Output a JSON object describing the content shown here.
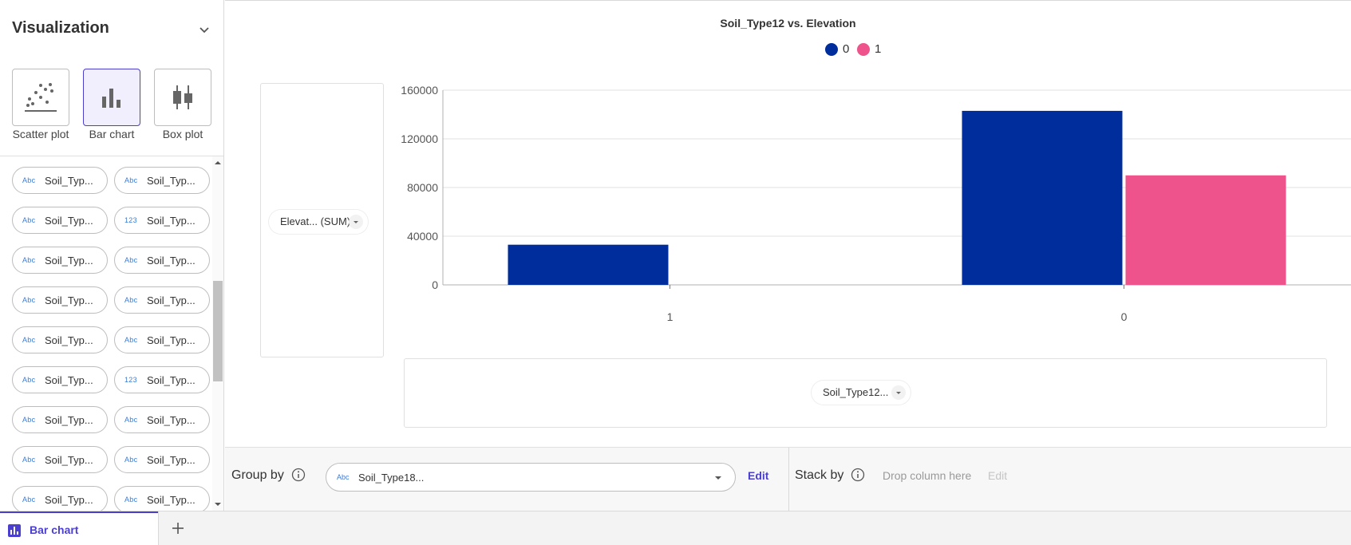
{
  "sidebar": {
    "title": "Visualization",
    "viz_types": [
      {
        "label": "Scatter plot",
        "icon": "scatter-plot-icon",
        "selected": false
      },
      {
        "label": "Bar chart",
        "icon": "bar-chart-icon",
        "selected": true
      },
      {
        "label": "Box plot",
        "icon": "box-plot-icon",
        "selected": false
      }
    ],
    "fields": [
      {
        "type": "Abc",
        "name": "Soil_Typ..."
      },
      {
        "type": "Abc",
        "name": "Soil_Typ..."
      },
      {
        "type": "Abc",
        "name": "Soil_Typ..."
      },
      {
        "type": "123",
        "name": "Soil_Typ..."
      },
      {
        "type": "Abc",
        "name": "Soil_Typ..."
      },
      {
        "type": "Abc",
        "name": "Soil_Typ..."
      },
      {
        "type": "Abc",
        "name": "Soil_Typ..."
      },
      {
        "type": "Abc",
        "name": "Soil_Typ..."
      },
      {
        "type": "Abc",
        "name": "Soil_Typ..."
      },
      {
        "type": "Abc",
        "name": "Soil_Typ..."
      },
      {
        "type": "Abc",
        "name": "Soil_Typ..."
      },
      {
        "type": "123",
        "name": "Soil_Typ..."
      },
      {
        "type": "Abc",
        "name": "Soil_Typ..."
      },
      {
        "type": "Abc",
        "name": "Soil_Typ..."
      },
      {
        "type": "Abc",
        "name": "Soil_Typ..."
      },
      {
        "type": "Abc",
        "name": "Soil_Typ..."
      },
      {
        "type": "Abc",
        "name": "Soil_Typ..."
      },
      {
        "type": "Abc",
        "name": "Soil_Typ..."
      }
    ]
  },
  "chart": {
    "y_field": "Elevat... (SUM)",
    "x_field": "Soil_Type12..."
  },
  "chart_data": {
    "type": "bar",
    "title": "Soil_Type12 vs. Elevation",
    "categories": [
      "1",
      "0"
    ],
    "series": [
      {
        "name": "0",
        "values": [
          33000,
          143000
        ],
        "color": "#002d9c"
      },
      {
        "name": "1",
        "values": [
          0,
          90000
        ],
        "color": "#ee538b"
      }
    ],
    "y_ticks": [
      "0",
      "40000",
      "80000",
      "120000",
      "160000"
    ],
    "ylim": [
      0,
      160000
    ],
    "grid": true,
    "legend_position": "top"
  },
  "config": {
    "group_by_label": "Group by",
    "group_by_type": "Abc",
    "group_by_value": "Soil_Type18...",
    "group_edit": "Edit",
    "stack_by_label": "Stack by",
    "stack_drop_hint": "Drop column here",
    "stack_edit": "Edit"
  },
  "tabs": [
    {
      "label": "Bar chart",
      "active": true
    }
  ],
  "colors": {
    "accent": "#4b3fcf",
    "series0": "#002d9c",
    "series1": "#ee538b"
  }
}
